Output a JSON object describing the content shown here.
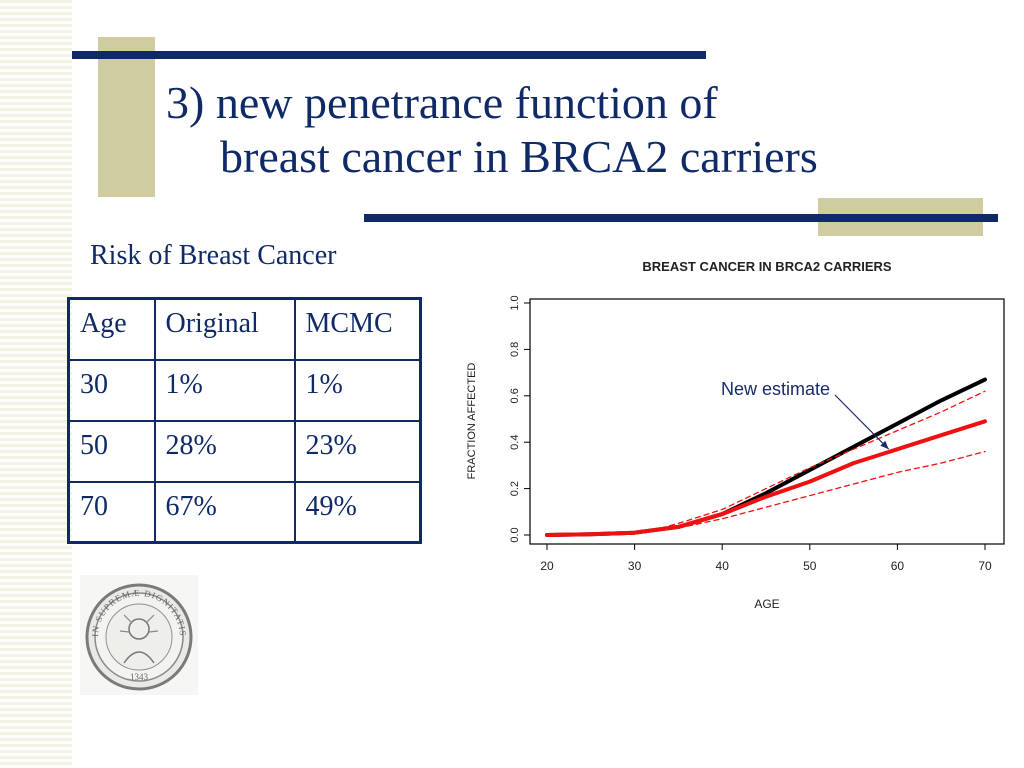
{
  "slide": {
    "title_line1": "3) new penetrance function of",
    "title_line2": "breast cancer in BRCA2 carriers",
    "table_caption": "Risk of Breast Cancer"
  },
  "risk_table": {
    "headers": [
      "Age",
      "Original",
      "MCMC"
    ],
    "rows": [
      [
        "30",
        "1%",
        "1%"
      ],
      [
        "50",
        "28%",
        "23%"
      ],
      [
        "70",
        "67%",
        "49%"
      ]
    ]
  },
  "seal": {
    "text_top": "IN SUPREMÆ DIGNITATIS",
    "year": "1343"
  },
  "colors": {
    "title_blue": "#0f2a66",
    "accent_khaki": "#cfcca0",
    "original_series": "#000000",
    "mcmc_series": "#ee1111"
  },
  "chart_data": {
    "type": "line",
    "title": "BREAST CANCER IN BRCA2 CARRIERS",
    "xlabel": "AGE",
    "ylabel": "FRACTION AFFECTED",
    "xlim": [
      20,
      70
    ],
    "ylim": [
      0,
      1
    ],
    "xticks": [
      20,
      30,
      40,
      50,
      60,
      70
    ],
    "yticks": [
      0.0,
      0.2,
      0.4,
      0.6,
      0.8,
      1.0
    ],
    "ytick_labels": [
      "0.0",
      "0.2",
      "0.4",
      "0.6",
      "0.8",
      "1.0"
    ],
    "grid": false,
    "annotation": {
      "text": "New estimate",
      "points_to": [
        59,
        0.37
      ]
    },
    "series": [
      {
        "color": "#000000",
        "style": "solid",
        "x": [
          20,
          25,
          30,
          35,
          40,
          45,
          50,
          55,
          60,
          65,
          70
        ],
        "y": [
          0.0,
          0.003,
          0.01,
          0.035,
          0.09,
          0.18,
          0.28,
          0.38,
          0.48,
          0.58,
          0.67
        ]
      },
      {
        "color": "#ee1111",
        "style": "solid",
        "x": [
          20,
          25,
          30,
          35,
          40,
          45,
          50,
          55,
          60,
          65,
          70
        ],
        "y": [
          0.0,
          0.003,
          0.01,
          0.035,
          0.09,
          0.165,
          0.23,
          0.31,
          0.37,
          0.43,
          0.49
        ]
      },
      {
        "color": "#ee1111",
        "style": "dashed",
        "x": [
          33,
          35,
          40,
          45,
          50,
          55,
          60,
          65,
          70
        ],
        "y": [
          0.03,
          0.05,
          0.11,
          0.2,
          0.29,
          0.37,
          0.45,
          0.53,
          0.62
        ]
      },
      {
        "color": "#ee1111",
        "style": "dashed",
        "x": [
          33,
          35,
          40,
          45,
          50,
          55,
          60,
          65,
          70
        ],
        "y": [
          0.02,
          0.03,
          0.07,
          0.12,
          0.17,
          0.22,
          0.27,
          0.31,
          0.36
        ]
      }
    ]
  }
}
